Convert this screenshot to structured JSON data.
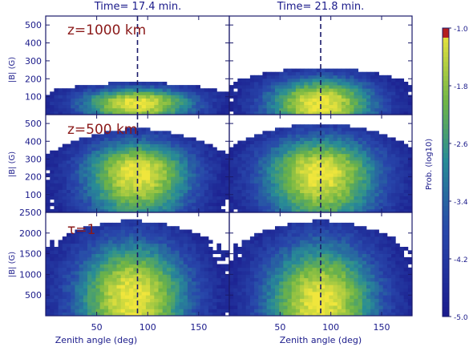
{
  "chart_data": {
    "type": "heatmap",
    "columns": [
      {
        "title": "Time= 17.4 min."
      },
      {
        "title": "Time= 21.8 min."
      }
    ],
    "rows": [
      {
        "label": "z=1000 km",
        "ylabel": "|B| (G)",
        "ylim": [
          0,
          550
        ],
        "yticks": [
          100,
          200,
          300,
          400,
          500
        ]
      },
      {
        "label": "z=500 km",
        "ylabel": "|B| (G)",
        "ylim": [
          0,
          550
        ],
        "yticks": [
          100,
          200,
          300,
          400,
          500
        ]
      },
      {
        "label": "τ=1",
        "ylabel": "|B| (G)",
        "ylim": [
          0,
          2500
        ],
        "yticks": [
          500,
          1000,
          1500,
          2000,
          2500
        ]
      }
    ],
    "xlabel": "Zenith angle (deg)",
    "xlim": [
      0,
      180
    ],
    "xticks": [
      50,
      100,
      150
    ],
    "reference_line_x": 90,
    "colorbar": {
      "label": "Prob. (log10)",
      "range": [
        -5.0,
        -1.0
      ],
      "ticks": [
        "-1.0",
        "-1.8",
        "-2.6",
        "-3.4",
        "-4.2",
        "-5.0"
      ]
    },
    "panels": [
      {
        "row": 0,
        "col": 0,
        "peak_x": 90,
        "peak_y": 70,
        "halfwidth": 50,
        "ymax": 180
      },
      {
        "row": 0,
        "col": 1,
        "peak_x": 90,
        "peak_y": 70,
        "halfwidth": 48,
        "ymax": 260
      },
      {
        "row": 1,
        "col": 0,
        "peak_x": 90,
        "peak_y": 230,
        "halfwidth": 48,
        "ymax": 470
      },
      {
        "row": 1,
        "col": 1,
        "peak_x": 90,
        "peak_y": 230,
        "halfwidth": 52,
        "ymax": 500
      },
      {
        "row": 2,
        "col": 0,
        "peak_x": 85,
        "peak_y": 500,
        "halfwidth": 50,
        "ymax": 2300
      },
      {
        "row": 2,
        "col": 1,
        "peak_x": 90,
        "peak_y": 350,
        "halfwidth": 50,
        "ymax": 2300
      }
    ],
    "grid": false,
    "legend": "none"
  }
}
